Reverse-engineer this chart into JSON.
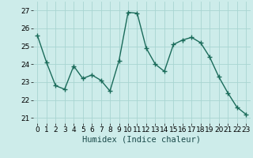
{
  "x": [
    0,
    1,
    2,
    3,
    4,
    5,
    6,
    7,
    8,
    9,
    10,
    11,
    12,
    13,
    14,
    15,
    16,
    17,
    18,
    19,
    20,
    21,
    22,
    23
  ],
  "y": [
    25.6,
    24.1,
    22.8,
    22.6,
    23.9,
    23.2,
    23.4,
    23.1,
    22.5,
    24.2,
    26.9,
    26.85,
    24.9,
    24.0,
    23.6,
    25.1,
    25.35,
    25.5,
    25.2,
    24.4,
    23.3,
    22.4,
    21.6,
    21.2
  ],
  "line_color": "#1a6b5a",
  "marker": "+",
  "markersize": 4,
  "linewidth": 1.0,
  "xlabel": "Humidex (Indice chaleur)",
  "ylim": [
    20.7,
    27.5
  ],
  "yticks": [
    21,
    22,
    23,
    24,
    25,
    26,
    27
  ],
  "xlim": [
    -0.5,
    23.5
  ],
  "xticks": [
    0,
    1,
    2,
    3,
    4,
    5,
    6,
    7,
    8,
    9,
    10,
    11,
    12,
    13,
    14,
    15,
    16,
    17,
    18,
    19,
    20,
    21,
    22,
    23
  ],
  "bg_color": "#cdecea",
  "grid_color": "#a8d5d1",
  "tick_fontsize": 6.5,
  "xlabel_fontsize": 7.5
}
